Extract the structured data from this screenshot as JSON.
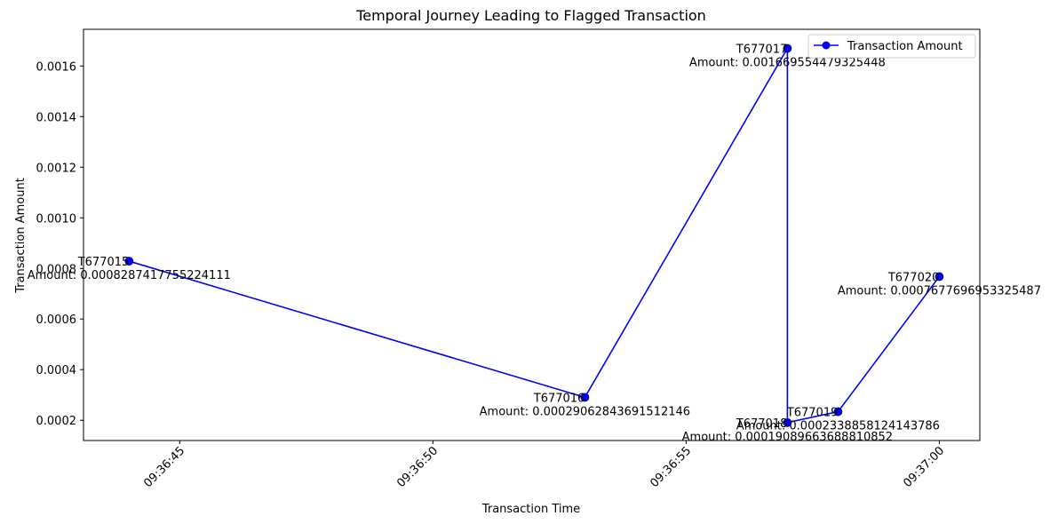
{
  "chart_data": {
    "type": "line",
    "title": "Temporal Journey Leading to Flagged Transaction",
    "xlabel": "Transaction Time",
    "ylabel": "Transaction Amount",
    "xlim": [
      "09:36:43.1",
      "09:37:00.8"
    ],
    "ylim": [
      0.00012,
      0.001745
    ],
    "x_ticks": [
      "09:36:45",
      "09:36:50",
      "09:36:55",
      "09:37:00"
    ],
    "y_ticks": [
      "0.0002",
      "0.0004",
      "0.0006",
      "0.0008",
      "0.0010",
      "0.0012",
      "0.0014",
      "0.0016"
    ],
    "grid": false,
    "legend_position": "upper right",
    "series": [
      {
        "name": "Transaction Amount",
        "color": "#0000ff",
        "marker": "circle",
        "points": [
          {
            "id": "T677015",
            "time": "09:36:44",
            "amount": 0.0008287417755224111,
            "annotation": "Amount: 0.0008287417755224111"
          },
          {
            "id": "T677016",
            "time": "09:36:53",
            "amount": 0.00029062843691512146,
            "annotation": "Amount: 0.00029062843691512146"
          },
          {
            "id": "T677017",
            "time": "09:36:57",
            "amount": 0.001669554479325448,
            "annotation": "Amount: 0.001669554479325448"
          },
          {
            "id": "T677018",
            "time": "09:36:57",
            "amount": 0.00019089663688810852,
            "annotation": "Amount: 0.00019089663688810852"
          },
          {
            "id": "T677019",
            "time": "09:36:58",
            "amount": 0.0002338858124143786,
            "annotation": "Amount: 0.0002338858124143786"
          },
          {
            "id": "T677020",
            "time": "09:37:00",
            "amount": 0.0007677696953325487,
            "annotation": "Amount: 0.0007677696953325487"
          }
        ]
      }
    ]
  }
}
